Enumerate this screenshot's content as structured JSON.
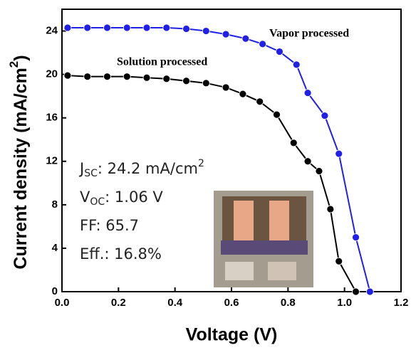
{
  "chart_data": {
    "type": "line",
    "xlabel": "Voltage (V)",
    "ylabel": {
      "text": "Current density (mA/cm",
      "sup": "2",
      "end": ")"
    },
    "xlim": [
      0,
      1.2
    ],
    "ylim": [
      0,
      26
    ],
    "xticks": [
      {
        "value": 0,
        "label": "0.0"
      },
      0.2,
      0.4,
      0.6,
      0.8,
      {
        "value": 1,
        "label": "1.0"
      },
      1.2
    ],
    "yticks": [
      0,
      4,
      8,
      12,
      16,
      20,
      24
    ],
    "series": [
      {
        "name": "Vapor processed",
        "color": "#2020e8",
        "x": [
          0.02,
          0.09,
          0.16,
          0.23,
          0.3,
          0.37,
          0.44,
          0.51,
          0.58,
          0.65,
          0.71,
          0.77,
          0.83,
          0.87,
          0.93,
          0.98,
          1.04,
          1.09
        ],
        "values": [
          24.3,
          24.3,
          24.3,
          24.3,
          24.3,
          24.3,
          24.2,
          24.0,
          23.7,
          23.3,
          22.8,
          22.1,
          20.9,
          18.3,
          16.2,
          12.7,
          5.0,
          0
        ]
      },
      {
        "name": "Solution processed",
        "color": "#000000",
        "x": [
          0.02,
          0.09,
          0.16,
          0.23,
          0.3,
          0.37,
          0.44,
          0.51,
          0.58,
          0.64,
          0.7,
          0.76,
          0.82,
          0.87,
          0.91,
          0.95,
          0.98,
          1.04
        ],
        "values": [
          19.9,
          19.8,
          19.8,
          19.8,
          19.7,
          19.6,
          19.4,
          19.2,
          18.8,
          18.2,
          17.5,
          16.3,
          13.7,
          12.0,
          11.1,
          7.6,
          2.8,
          0
        ]
      }
    ],
    "metrics": [
      {
        "label": "J",
        "sub": "SC",
        "text": ":  24.2 mA/cm",
        "sup": "2"
      },
      {
        "label": "V",
        "sub": "OC",
        "text": ": 1.06 V"
      },
      {
        "label": "FF:   65.7"
      },
      {
        "label": "Eff.: 16.8%"
      }
    ]
  }
}
